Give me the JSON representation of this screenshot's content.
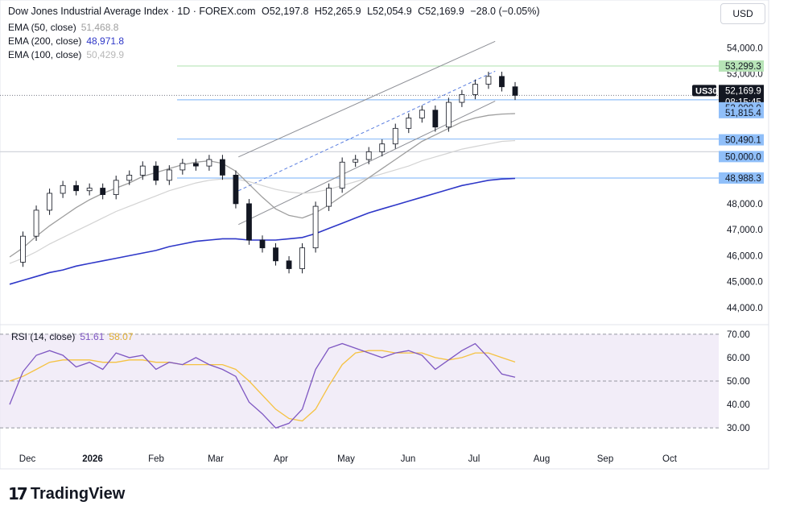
{
  "header": {
    "symbol_title": "Dow Jones Industrial Average Index · 1D · FOREX.com",
    "open": "O52,197.8",
    "high": "H52,265.9",
    "low": "L52,054.9",
    "close": "C52,169.9",
    "change": "−28.0 (−0.05%)"
  },
  "currency_button": "USD",
  "ema_legend": [
    {
      "label": "EMA (50, close)",
      "value": "51,468.8",
      "color": "#9e9e9e"
    },
    {
      "label": "EMA (200, close)",
      "value": "48,971.8",
      "color": "#2e37c8"
    },
    {
      "label": "EMA (100, close)",
      "value": "50,429.9",
      "color": "#c8c8c8"
    }
  ],
  "rsi_legend": {
    "label": "RSI (14, close)",
    "rsi_value": "51.61",
    "rsi_color": "#7e57c2",
    "ma_value": "58.07",
    "ma_color": "#f5c242"
  },
  "brand": {
    "name": "TradingView",
    "mark": "17"
  },
  "chart_data": {
    "type": "line",
    "title": "Dow Jones Industrial Average Index · 1D · FOREX.com",
    "price_axis": {
      "ticks": [
        "54,000.0",
        "53,000.0",
        "48,000.0",
        "47,000.0",
        "46,000.0",
        "45,000.0",
        "44,000.0"
      ],
      "tick_values": [
        54000,
        53000,
        48000,
        47000,
        46000,
        45000,
        44000
      ],
      "range": [
        43500,
        54600
      ]
    },
    "time_axis": {
      "labels": [
        "Dec",
        "2026",
        "Feb",
        "Mar",
        "Apr",
        "May",
        "Jun",
        "Jul",
        "Aug",
        "Sep",
        "Oct"
      ],
      "bold": [
        "2026"
      ]
    },
    "price_labels": [
      {
        "text": "53,299.3",
        "value": 53299.3,
        "bg": "#b7e4b7",
        "color": "#131722"
      },
      {
        "text": "52,169.9",
        "value": 52169.9,
        "bg": "#131722",
        "color": "#ffffff",
        "sub": "08:15:45",
        "tag": "US30"
      },
      {
        "text": "52,000.0",
        "value": 52000.0,
        "bg": "#90bff9",
        "color": "#131722"
      },
      {
        "text": "51,815.4",
        "value": 51815.4,
        "bg": "#90bff9",
        "color": "#131722"
      },
      {
        "text": "50,490.1",
        "value": 50490.1,
        "bg": "#90bff9",
        "color": "#131722"
      },
      {
        "text": "50,000.0",
        "value": 50000.0,
        "bg": "#90bff9",
        "color": "#131722"
      },
      {
        "text": "48,988.3",
        "value": 48988.3,
        "bg": "#90bff9",
        "color": "#131722"
      }
    ],
    "horizontal_levels": [
      {
        "value": 53299.3,
        "color": "#b7e4b7"
      },
      {
        "value": 52000.0,
        "color": "#90bff9"
      },
      {
        "value": 50490.1,
        "color": "#90bff9"
      },
      {
        "value": 50000.0,
        "color": "#d1d4dc"
      },
      {
        "value": 48988.3,
        "color": "#90bff9"
      }
    ],
    "closes_weekly": [
      45750,
      46750,
      47750,
      48400,
      48700,
      48500,
      48600,
      48350,
      48900,
      49100,
      49450,
      48900,
      49300,
      49550,
      49450,
      49700,
      49100,
      48000,
      46600,
      46300,
      45800,
      45500,
      46300,
      47900,
      48600,
      49600,
      49700,
      50000,
      50300,
      50900,
      51300,
      51600,
      50950,
      51900,
      52200,
      52600,
      52900,
      52500,
      52170
    ],
    "ema_50": [
      45950,
      46300,
      46750,
      47150,
      47500,
      47850,
      48150,
      48400,
      48600,
      48800,
      49050,
      49200,
      49350,
      49500,
      49600,
      49650,
      49550,
      49250,
      48750,
      48250,
      47800,
      47550,
      47450,
      47650,
      47950,
      48300,
      48650,
      49000,
      49350,
      49700,
      50050,
      50400,
      50650,
      50900,
      51150,
      51300,
      51400,
      51450,
      51469
    ],
    "ema_100": [
      45700,
      45900,
      46150,
      46450,
      46700,
      46950,
      47200,
      47450,
      47700,
      47900,
      48100,
      48300,
      48500,
      48650,
      48800,
      48900,
      48950,
      48950,
      48850,
      48700,
      48550,
      48450,
      48400,
      48450,
      48550,
      48700,
      48850,
      49000,
      49150,
      49300,
      49450,
      49650,
      49800,
      49950,
      50100,
      50200,
      50300,
      50400,
      50430
    ],
    "ema_200": [
      44900,
      45050,
      45200,
      45350,
      45450,
      45600,
      45700,
      45800,
      45900,
      46000,
      46100,
      46200,
      46350,
      46450,
      46550,
      46600,
      46650,
      46650,
      46600,
      46600,
      46600,
      46650,
      46700,
      46850,
      47050,
      47250,
      47450,
      47650,
      47800,
      47950,
      48100,
      48250,
      48400,
      48550,
      48700,
      48800,
      48900,
      48950,
      48972
    ],
    "channel": {
      "upper": [
        {
          "t": 17.2,
          "v": 49800
        },
        {
          "t": 36.5,
          "v": 54250
        }
      ],
      "lower": [
        {
          "t": 17.2,
          "v": 47200
        },
        {
          "t": 36.5,
          "v": 51950
        }
      ],
      "mid": [
        {
          "t": 17.2,
          "v": 48500
        },
        {
          "t": 36.5,
          "v": 53100
        }
      ]
    },
    "rsi_panel": {
      "ticks": [
        "70.00",
        "60.00",
        "50.00",
        "40.00",
        "30.00"
      ],
      "tick_values": [
        70,
        60,
        50,
        40,
        30
      ],
      "band": [
        30,
        70
      ],
      "rsi": [
        40,
        54,
        61,
        63,
        61,
        56,
        58,
        55,
        62,
        60,
        61,
        55,
        58,
        57,
        60,
        57,
        55,
        52,
        41,
        36,
        30,
        32,
        38,
        55,
        64,
        66,
        64,
        62,
        60,
        62,
        63,
        61,
        55,
        59,
        63,
        66,
        60,
        53,
        51.6
      ],
      "rsi_ma": [
        50,
        52,
        55,
        58,
        59,
        59,
        59,
        58,
        58,
        59,
        59,
        58,
        58,
        57,
        57,
        57,
        57,
        55,
        50,
        44,
        38,
        34,
        33,
        38,
        48,
        57,
        62,
        63,
        63,
        62,
        62,
        62,
        60,
        59,
        60,
        62,
        62,
        60,
        58.1
      ]
    }
  }
}
